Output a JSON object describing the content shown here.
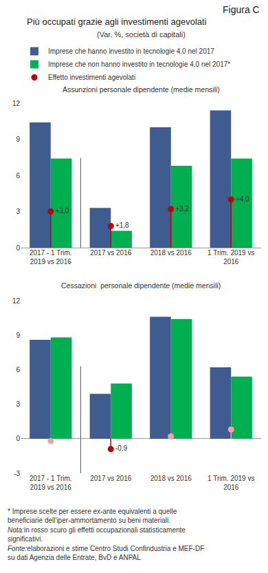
{
  "figure_label": "Figura C",
  "title": "Più occupati grazie agli investimenti agevolati",
  "subtitle": "(Var. %, società di capitali)",
  "chart_data": [
    {
      "type": "bar",
      "title": "Assunzioni personale dipendente (medie mensili)",
      "categories": [
        "2017 - 1 Trim. 2019 vs 2016",
        "2017 vs 2016",
        "2018 vs 2016",
        "1 Trim. 2019 vs 2016"
      ],
      "series": [
        {
          "name": "Imprese che hanno investito in tecnologie 4.0 nel 2017",
          "color": "#3E5C8F",
          "values": [
            10.4,
            3.3,
            10.0,
            11.4
          ]
        },
        {
          "name": "Imprese che non hanno investito in tecnologie 4.0 nel 2017*",
          "color": "#00B050",
          "values": [
            7.4,
            1.4,
            6.8,
            7.4
          ]
        },
        {
          "name": "Effetto investimenti agevolati",
          "type": "scatter",
          "marker": "circle",
          "colors": [
            "#C00000",
            "#C00000",
            "#C00000",
            "#C00000"
          ],
          "values": [
            3.0,
            1.8,
            3.2,
            4.0
          ],
          "value_labels": [
            "+3,0",
            "+1,8",
            "+3,2",
            "+4,0"
          ]
        }
      ],
      "ylim": [
        0,
        12
      ],
      "yticks": [
        0,
        3,
        6,
        9,
        12
      ],
      "grid": false,
      "legend": "top"
    },
    {
      "type": "bar",
      "title": "Cessazioni  personale dipendente (medie mensili)",
      "categories": [
        "2017 - 1 Trim. 2019 vs 2016",
        "2017 vs 2016",
        "2018 vs 2016",
        "1 Trim. 2019 vs 2016"
      ],
      "series": [
        {
          "name": "Imprese che hanno investito in tecnologie 4.0 nel 2017",
          "color": "#3E5C8F",
          "values": [
            8.6,
            3.9,
            10.6,
            6.2
          ]
        },
        {
          "name": "Imprese che non hanno investito in tecnologie 4.0 nel 2017*",
          "color": "#00B050",
          "values": [
            8.8,
            4.8,
            10.4,
            5.4
          ]
        },
        {
          "name": "Effetto investimenti agevolati",
          "type": "scatter",
          "marker": "circle",
          "colors": [
            "#F4A3A3",
            "#C00000",
            "#F4A3A3",
            "#F4A3A3"
          ],
          "values": [
            -0.2,
            -0.9,
            0.2,
            0.8
          ],
          "value_labels": [
            null,
            "-0,9",
            null,
            null
          ]
        }
      ],
      "ylim": [
        -3,
        12
      ],
      "yticks": [
        -3,
        0,
        3,
        6,
        9,
        12
      ],
      "grid": false
    }
  ],
  "notes": [
    {
      "text": "* Imprese scelte per essere ex-ante equivalenti a quelle beneficiarie dell'iper-ammortamento su beni materiali."
    },
    {
      "label": "Nota:",
      "text": "in rosso scuro gli effetti occupazionali statisticamente significativi."
    },
    {
      "label": "Fonte:",
      "text": "elaborazioni e stime Centro Studi Confindustria e MEF-DF su dati Agenzia delle Entrate, BvD e ANPAL"
    }
  ]
}
